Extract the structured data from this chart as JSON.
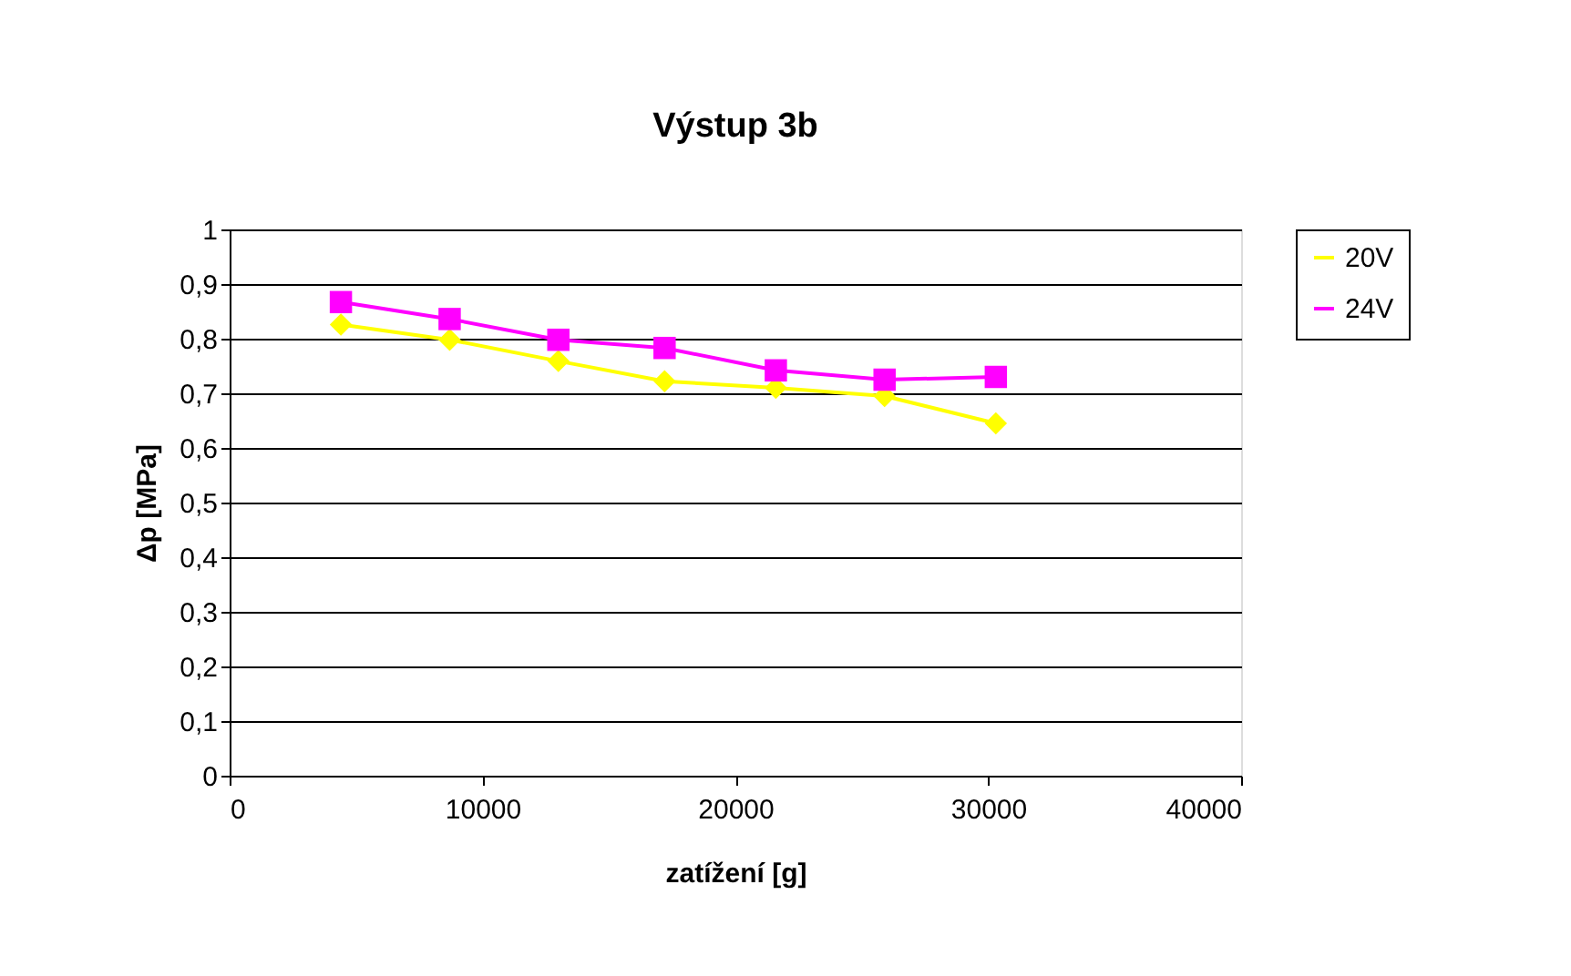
{
  "chart_data": {
    "type": "line",
    "title": "Výstup 3b",
    "xlabel": "zatížení [g]",
    "ylabel": "Δp [MPa]",
    "xlim": [
      0,
      40000
    ],
    "xticks": [
      0,
      10000,
      20000,
      30000,
      40000
    ],
    "ylim": [
      0,
      1
    ],
    "yticks": [
      0,
      {
        "value": 0.1,
        "label": "0,1"
      },
      {
        "value": 0.2,
        "label": "0,2"
      },
      {
        "value": 0.3,
        "label": "0,3"
      },
      {
        "value": 0.4,
        "label": "0,4"
      },
      {
        "value": 0.5,
        "label": "0,5"
      },
      {
        "value": 0.6,
        "label": "0,6"
      },
      {
        "value": 0.7,
        "label": "0,7"
      },
      {
        "value": 0.8,
        "label": "0,8"
      },
      {
        "value": 0.9,
        "label": "0,9"
      },
      1
    ],
    "x": [
      4400,
      8700,
      13000,
      17200,
      21600,
      25900,
      30300
    ],
    "grid": "y",
    "legend": "right",
    "line_style": "solid",
    "series": [
      {
        "name": "20V",
        "color": "#ffff00",
        "marker": "diamond",
        "values": [
          0.826,
          0.798,
          0.759,
          0.722,
          0.71,
          0.695,
          0.645
        ]
      },
      {
        "name": "24V",
        "color": "#ff00ff",
        "marker": "square",
        "values": [
          0.867,
          0.836,
          0.798,
          0.783,
          0.742,
          0.725,
          0.73
        ]
      }
    ]
  }
}
